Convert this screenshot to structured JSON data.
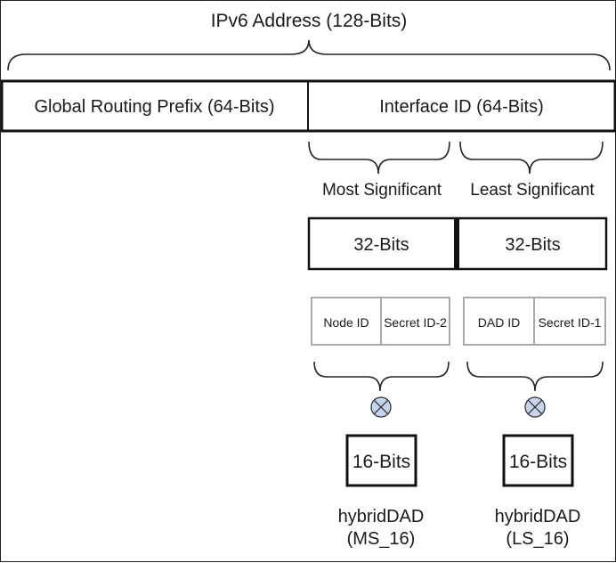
{
  "title": "IPv6 Address (128-Bits)",
  "address": {
    "prefix_label": "Global Routing Prefix (64-Bits)",
    "interface_label": "Interface ID (64-Bits)"
  },
  "halves": {
    "most_label": "Most Significant",
    "least_label": "Least Significant",
    "most_bits": "32-Bits",
    "least_bits": "32-Bits"
  },
  "fields": {
    "node_id": "Node ID",
    "secret_id_2": "Secret ID-2",
    "dad_id": "DAD ID",
    "secret_id_1": "Secret ID-1"
  },
  "operator": {
    "symbol": "xor-circle-icon",
    "fill": "#c7d4ee"
  },
  "outputs": {
    "left_bits": "16-Bits",
    "right_bits": "16-Bits",
    "left_name": "hybridDAD",
    "left_sub": "(MS_16)",
    "right_name": "hybridDAD",
    "right_sub": "(LS_16)"
  }
}
